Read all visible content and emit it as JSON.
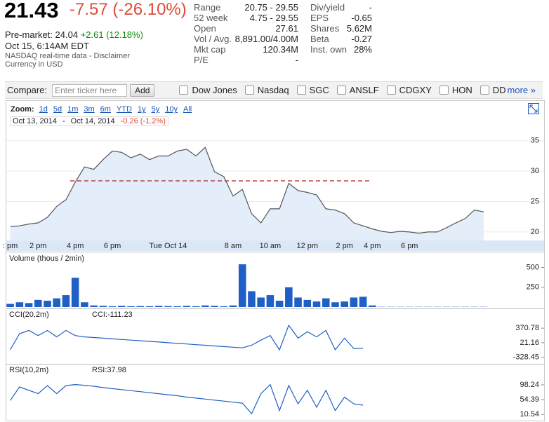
{
  "quote": {
    "price": "21.43",
    "change": "-7.57 (-26.10%)",
    "premarket": "Pre-market: 24.04",
    "premarket_change": "+2.61 (12.18%)",
    "time": "Oct 15, 6:14AM EDT",
    "disclaimer": "NASDAQ real-time data - Disclaimer",
    "currency": "Currency in USD"
  },
  "stats": {
    "left": [
      [
        "Range",
        "20.75 - 29.55"
      ],
      [
        "52 week",
        "4.75 - 29.55"
      ],
      [
        "Open",
        "27.61"
      ],
      [
        "Vol / Avg.",
        "8,891.00/4.00M"
      ],
      [
        "Mkt cap",
        "120.34M"
      ],
      [
        "P/E",
        "-"
      ]
    ],
    "right": [
      [
        "Div/yield",
        "-"
      ],
      [
        "EPS",
        "-0.65"
      ],
      [
        "Shares",
        "5.62M"
      ],
      [
        "Beta",
        "-0.27"
      ],
      [
        "Inst. own",
        "28%"
      ]
    ]
  },
  "compare": {
    "label": "Compare:",
    "placeholder": "Enter ticker here",
    "button": "Add",
    "tickers": [
      "Dow Jones",
      "Nasdaq",
      "SGC",
      "ANSLF",
      "CDGXY",
      "HON",
      "DD"
    ],
    "more": "more »"
  },
  "zoom": {
    "label": "Zoom:",
    "options": [
      "1d",
      "5d",
      "1m",
      "3m",
      "6m",
      "YTD",
      "1y",
      "5y",
      "10y",
      "All"
    ]
  },
  "range": {
    "from": "Oct 13, 2014",
    "separator": "-",
    "to": "Oct 14, 2014",
    "change": "-0.26 (-1.2%)"
  },
  "chart_data": [
    {
      "type": "line",
      "categories": [
        ": pm",
        null,
        null,
        "2 pm",
        null,
        null,
        null,
        "4 pm",
        null,
        null,
        null,
        "6 pm",
        null,
        null,
        null,
        null,
        null,
        "Tue Oct 14",
        null,
        null,
        null,
        null,
        null,
        null,
        "8 am",
        null,
        null,
        null,
        "10 am",
        null,
        null,
        null,
        "12 pm",
        null,
        null,
        null,
        "2 pm",
        null,
        null,
        "4 pm",
        null,
        null,
        null,
        "6 pm",
        null,
        null,
        null,
        null,
        null,
        null,
        null,
        null,
        null,
        null,
        null,
        null,
        null,
        null
      ],
      "values": [
        20.9,
        21.0,
        21.3,
        21.5,
        22.4,
        24.2,
        25.3,
        28.2,
        30.7,
        30.3,
        31.9,
        33.3,
        33.1,
        32.2,
        32.8,
        31.9,
        32.5,
        32.5,
        33.3,
        33.6,
        32.5,
        33.9,
        29.9,
        29.1,
        25.9,
        27.0,
        23.0,
        21.5,
        23.8,
        23.8,
        28.0,
        26.8,
        26.5,
        26.1,
        23.8,
        23.6,
        23.0,
        21.5,
        21.0,
        20.5,
        20.1,
        19.9,
        20.1,
        20.0,
        19.8,
        20.0,
        20.0,
        20.7,
        21.5,
        22.2,
        23.6,
        23.3,
        null,
        null,
        null,
        null,
        null,
        null
      ],
      "color": "#555555",
      "fill_color": "#e3eefa",
      "reference_line": 28.4,
      "reference_color": "#b22222",
      "ylim": [
        18.6,
        35.9
      ],
      "yticks": [
        20,
        25,
        30,
        35
      ],
      "grid": true
    },
    {
      "type": "bar",
      "title": "Volume (thous / 2min)",
      "values": [
        40,
        60,
        50,
        90,
        80,
        110,
        150,
        370,
        60,
        20,
        15,
        10,
        15,
        10,
        12,
        10,
        15,
        12,
        10,
        15,
        10,
        20,
        15,
        10,
        20,
        540,
        200,
        120,
        150,
        80,
        250,
        120,
        90,
        70,
        110,
        60,
        70,
        120,
        130,
        20,
        3,
        3,
        3,
        3,
        3,
        3,
        3,
        3,
        3,
        3,
        3,
        3,
        null,
        null,
        null,
        null,
        null,
        null
      ],
      "color": "#1f5fc6",
      "ylim": [
        0,
        558
      ],
      "yticks": [
        250,
        500
      ],
      "grid": false
    },
    {
      "type": "line",
      "title": "CCI(20,2m)",
      "readout": "CCI:-111.23",
      "values": [
        -150,
        239,
        316,
        192,
        316,
        161,
        316,
        192,
        161,
        145,
        130,
        114,
        99,
        83,
        68,
        52,
        37,
        21,
        6,
        -10,
        -26,
        -41,
        -57,
        -72,
        -88,
        -103,
        -41,
        83,
        192,
        -150,
        441,
        130,
        285,
        161,
        316,
        -150,
        130,
        -119,
        -111,
        null,
        null,
        null,
        null,
        null,
        null,
        null,
        null,
        null,
        null,
        null,
        null,
        null,
        null,
        null,
        null,
        null,
        null,
        null
      ],
      "color": "#1f5fc6",
      "ylim": [
        -437,
        728
      ],
      "yticks": [
        -328.45,
        21.16,
        370.78
      ],
      "grid": false
    },
    {
      "type": "line",
      "title": "RSI(10,2m)",
      "readout": "RSI:37.98",
      "values": [
        52,
        92,
        82,
        72,
        96,
        72,
        96,
        99,
        97,
        94,
        90,
        87,
        84,
        81,
        78,
        75,
        72,
        69,
        66,
        62,
        59,
        56,
        53,
        50,
        47,
        44,
        13,
        72,
        99,
        22,
        96,
        42,
        82,
        32,
        82,
        22,
        62,
        42,
        38,
        null,
        null,
        null,
        null,
        null,
        null,
        null,
        null,
        null,
        null,
        null,
        null,
        null,
        null,
        null,
        null,
        null,
        null,
        null
      ],
      "color": "#1f5fc6",
      "ylim": [
        -3.4,
        150
      ],
      "yticks": [
        10.54,
        54.39,
        98.24
      ],
      "grid": false
    }
  ]
}
